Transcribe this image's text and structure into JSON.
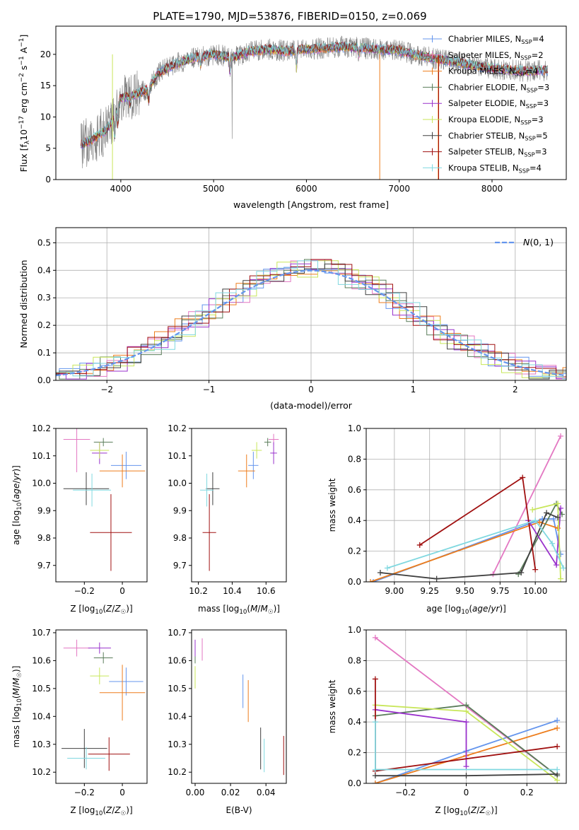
{
  "chart_data": [
    {
      "id": "spectrum",
      "type": "line",
      "title": "PLATE=1790, MJD=53876, FIBERID=0150, z=0.069",
      "xlabel": "wavelength [Angstrom, rest frame]",
      "ylabel": "Flux [f_λ10^-17 erg cm^-2 s^-1 A^-1]",
      "xlim": [
        3300,
        8800
      ],
      "ylim": [
        0,
        24.5
      ],
      "xticks": [
        4000,
        5000,
        6000,
        7000,
        8000
      ],
      "yticks": [
        0,
        5,
        10,
        15,
        20
      ],
      "grid": false,
      "legend_position": "upper-right",
      "legend": [
        {
          "label": "Chabrier MILES, N_SSP=4",
          "color": "#6495ed"
        },
        {
          "label": "Salpeter MILES, N_SSP=2",
          "color": "#e377c2"
        },
        {
          "label": "Kroupa MILES, N_SSP=4",
          "color": "#ed7d1c"
        },
        {
          "label": "Chabrier ELODIE, N_SSP=3",
          "color": "#5a7d5a"
        },
        {
          "label": "Salpeter ELODIE, N_SSP=3",
          "color": "#9932cc"
        },
        {
          "label": "Kroupa ELODIE, N_SSP=3",
          "color": "#c8e65a"
        },
        {
          "label": "Chabrier STELIB, N_SSP=5",
          "color": "#404040"
        },
        {
          "label": "Salpeter STELIB, N_SSP=3",
          "color": "#a01010"
        },
        {
          "label": "Kroupa STELIB, N_SSP=4",
          "color": "#80d8e0"
        }
      ],
      "continuum": [
        [
          3570,
          5.5
        ],
        [
          3700,
          6.5
        ],
        [
          3850,
          8
        ],
        [
          3930,
          10
        ],
        [
          4000,
          13
        ],
        [
          4150,
          13.5
        ],
        [
          4300,
          14.5
        ],
        [
          4400,
          17
        ],
        [
          4600,
          18.5
        ],
        [
          4800,
          19.5
        ],
        [
          5000,
          20
        ],
        [
          5200,
          19.5
        ],
        [
          5400,
          20.5
        ],
        [
          5600,
          20.8
        ],
        [
          5800,
          20.5
        ],
        [
          6000,
          20.8
        ],
        [
          6200,
          21
        ],
        [
          6400,
          21.2
        ],
        [
          6600,
          21
        ],
        [
          6800,
          20.8
        ],
        [
          7000,
          20.6
        ],
        [
          7200,
          19.8
        ],
        [
          7400,
          19.3
        ],
        [
          7600,
          18.8
        ],
        [
          7800,
          18.2
        ],
        [
          8000,
          17.8
        ],
        [
          8200,
          17.5
        ],
        [
          8400,
          17.3
        ],
        [
          8600,
          17.5
        ]
      ]
    },
    {
      "id": "residuals",
      "type": "histogram",
      "xlabel": "(data-model)/error",
      "ylabel": "Normed distribution",
      "xlim": [
        -2.5,
        2.5
      ],
      "ylim": [
        0,
        0.555
      ],
      "xticks": [
        -2,
        -1,
        0,
        1,
        2
      ],
      "yticks": [
        0.0,
        0.1,
        0.2,
        0.3,
        0.4,
        0.5
      ],
      "grid": true,
      "legend": [
        {
          "label": "N(0,1)",
          "color": "#6495ed",
          "style": "dashed"
        }
      ],
      "reference_curve": "gaussian(mean=0, sigma=1)"
    },
    {
      "id": "age-vs-Z",
      "type": "scatter",
      "xlabel": "Z [log10(Z/Z☉)]",
      "ylabel": "age [log10(age/yr)]",
      "xlim": [
        -0.35,
        0.13
      ],
      "ylim": [
        9.64,
        10.2
      ],
      "xticks": [
        -0.2,
        0.0
      ],
      "yticks": [
        9.7,
        9.8,
        9.9,
        10.0,
        10.1,
        10.2
      ],
      "grid": false,
      "points": [
        {
          "x": -0.1,
          "y": 10.15,
          "xerr": 0.05,
          "yerr": 0.015,
          "color": "#5a7d5a"
        },
        {
          "x": -0.24,
          "y": 10.16,
          "xerr": 0.07,
          "yerr": 0.12,
          "color": "#e377c2"
        },
        {
          "x": -0.12,
          "y": 10.11,
          "xerr": 0.04,
          "yerr": 0.04,
          "color": "#9932cc"
        },
        {
          "x": -0.12,
          "y": 10.12,
          "xerr": 0.05,
          "yerr": 0.03,
          "color": "#c8e65a"
        },
        {
          "x": 0.02,
          "y": 10.065,
          "xerr": 0.08,
          "yerr": 0.05,
          "color": "#6495ed"
        },
        {
          "x": 0.0,
          "y": 10.045,
          "xerr": 0.12,
          "yerr": 0.06,
          "color": "#ed7d1c"
        },
        {
          "x": -0.19,
          "y": 9.98,
          "xerr": 0.12,
          "yerr": 0.06,
          "color": "#404040"
        },
        {
          "x": -0.16,
          "y": 9.975,
          "xerr": 0.1,
          "yerr": 0.06,
          "color": "#80d8e0"
        },
        {
          "x": -0.06,
          "y": 9.82,
          "xerr": 0.11,
          "yerr": 0.14,
          "color": "#a01010"
        }
      ]
    },
    {
      "id": "age-vs-mass",
      "type": "scatter",
      "xlabel": "mass [log10(M/M☉)]",
      "ylabel": "",
      "xlim": [
        10.16,
        10.72
      ],
      "ylim": [
        9.64,
        10.2
      ],
      "xticks": [
        10.2,
        10.4,
        10.6
      ],
      "yticks": [
        9.7,
        9.8,
        9.9,
        10.0,
        10.1,
        10.2
      ],
      "grid": false,
      "points": [
        {
          "x": 10.61,
          "y": 10.15,
          "xerr": 0.02,
          "yerr": 0.015,
          "color": "#5a7d5a"
        },
        {
          "x": 10.645,
          "y": 10.16,
          "xerr": 0.03,
          "yerr": 0.02,
          "color": "#e377c2"
        },
        {
          "x": 10.645,
          "y": 10.11,
          "xerr": 0.02,
          "yerr": 0.04,
          "color": "#9932cc"
        },
        {
          "x": 10.545,
          "y": 10.12,
          "xerr": 0.03,
          "yerr": 0.03,
          "color": "#c8e65a"
        },
        {
          "x": 10.525,
          "y": 10.065,
          "xerr": 0.03,
          "yerr": 0.05,
          "color": "#6495ed"
        },
        {
          "x": 10.485,
          "y": 10.045,
          "xerr": 0.05,
          "yerr": 0.06,
          "color": "#ed7d1c"
        },
        {
          "x": 10.285,
          "y": 9.98,
          "xerr": 0.04,
          "yerr": 0.06,
          "color": "#404040"
        },
        {
          "x": 10.25,
          "y": 9.975,
          "xerr": 0.04,
          "yerr": 0.06,
          "color": "#80d8e0"
        },
        {
          "x": 10.265,
          "y": 9.82,
          "xerr": 0.04,
          "yerr": 0.14,
          "color": "#a01010"
        }
      ]
    },
    {
      "id": "massweight-vs-age",
      "type": "line",
      "xlabel": "age [log10(age/yr)]",
      "ylabel": "mass weight",
      "xlim": [
        8.8,
        10.22
      ],
      "ylim": [
        0,
        1.0
      ],
      "xticks": [
        9.0,
        9.25,
        9.5,
        9.75,
        10.0
      ],
      "xticklabels": [
        "9.00",
        "9.25",
        "9.50",
        "9.75",
        "10.00"
      ],
      "yticks": [
        0.0,
        0.2,
        0.4,
        0.6,
        0.8,
        1.0
      ],
      "grid": true,
      "series": [
        {
          "color": "#6495ed",
          "points": [
            [
              8.85,
              0.0
            ],
            [
              10.05,
              0.41
            ],
            [
              10.13,
              0.41
            ],
            [
              10.18,
              0.18
            ]
          ]
        },
        {
          "color": "#e377c2",
          "points": [
            [
              9.7,
              0.05
            ],
            [
              10.18,
              0.95
            ]
          ]
        },
        {
          "color": "#ed7d1c",
          "points": [
            [
              8.83,
              0.0
            ],
            [
              10.03,
              0.39
            ],
            [
              10.16,
              0.35
            ]
          ]
        },
        {
          "color": "#5a7d5a",
          "points": [
            [
              9.88,
              0.05
            ],
            [
              10.15,
              0.51
            ],
            [
              10.19,
              0.44
            ]
          ]
        },
        {
          "color": "#9932cc",
          "points": [
            [
              9.95,
              0.4
            ],
            [
              10.15,
              0.11
            ],
            [
              10.18,
              0.48
            ]
          ]
        },
        {
          "color": "#c8e65a",
          "points": [
            [
              9.98,
              0.47
            ],
            [
              10.16,
              0.51
            ],
            [
              10.18,
              0.02
            ]
          ]
        },
        {
          "color": "#404040",
          "points": [
            [
              8.9,
              0.06
            ],
            [
              9.3,
              0.02
            ],
            [
              9.9,
              0.06
            ],
            [
              10.08,
              0.45
            ],
            [
              10.16,
              0.42
            ]
          ]
        },
        {
          "color": "#a01010",
          "points": [
            [
              9.18,
              0.24
            ],
            [
              9.91,
              0.68
            ],
            [
              10.0,
              0.08
            ]
          ]
        },
        {
          "color": "#80d8e0",
          "points": [
            [
              8.95,
              0.09
            ],
            [
              10.0,
              0.4
            ],
            [
              10.12,
              0.25
            ],
            [
              10.2,
              0.09
            ]
          ]
        }
      ]
    },
    {
      "id": "mass-vs-Z",
      "type": "scatter",
      "xlabel": "Z [log10(Z/Z☉)]",
      "ylabel": "mass [log10(M/M☉)]",
      "xlim": [
        -0.35,
        0.13
      ],
      "ylim": [
        10.16,
        10.71
      ],
      "xticks": [
        -0.2,
        0.0
      ],
      "yticks": [
        10.2,
        10.3,
        10.4,
        10.5,
        10.6,
        10.7
      ],
      "grid": false,
      "points": [
        {
          "x": -0.1,
          "y": 10.61,
          "xerr": 0.05,
          "yerr": 0.02,
          "color": "#5a7d5a"
        },
        {
          "x": -0.24,
          "y": 10.645,
          "xerr": 0.07,
          "yerr": 0.03,
          "color": "#e377c2"
        },
        {
          "x": -0.12,
          "y": 10.645,
          "xerr": 0.06,
          "yerr": 0.02,
          "color": "#9932cc"
        },
        {
          "x": -0.12,
          "y": 10.545,
          "xerr": 0.05,
          "yerr": 0.03,
          "color": "#c8e65a"
        },
        {
          "x": 0.02,
          "y": 10.525,
          "xerr": 0.09,
          "yerr": 0.05,
          "color": "#6495ed"
        },
        {
          "x": 0.0,
          "y": 10.485,
          "xerr": 0.12,
          "yerr": 0.1,
          "color": "#ed7d1c"
        },
        {
          "x": -0.2,
          "y": 10.285,
          "xerr": 0.12,
          "yerr": 0.07,
          "color": "#404040"
        },
        {
          "x": -0.19,
          "y": 10.25,
          "xerr": 0.1,
          "yerr": 0.04,
          "color": "#80d8e0"
        },
        {
          "x": -0.07,
          "y": 10.265,
          "xerr": 0.11,
          "yerr": 0.06,
          "color": "#a01010"
        }
      ]
    },
    {
      "id": "mass-vs-ebv",
      "type": "scatter",
      "xlabel": "E(B-V)",
      "ylabel": "",
      "xlim": [
        -0.002,
        0.0515
      ],
      "ylim": [
        10.16,
        10.71
      ],
      "xticks": [
        0.0,
        0.02,
        0.04
      ],
      "xticklabels": [
        "0.00",
        "0.02",
        "0.04"
      ],
      "yticks": [
        10.2,
        10.3,
        10.4,
        10.5,
        10.6,
        10.7
      ],
      "grid": false,
      "points": [
        {
          "x": 0.0,
          "y": 10.61,
          "yerr": 0.02,
          "color": "#5a7d5a"
        },
        {
          "x": 0.004,
          "y": 10.64,
          "yerr": 0.04,
          "color": "#e377c2"
        },
        {
          "x": 0.0,
          "y": 10.645,
          "yerr": 0.03,
          "color": "#9932cc"
        },
        {
          "x": 0.0,
          "y": 10.54,
          "yerr": 0.04,
          "color": "#c8e65a"
        },
        {
          "x": 0.027,
          "y": 10.49,
          "yerr": 0.06,
          "color": "#6495ed"
        },
        {
          "x": 0.03,
          "y": 10.455,
          "yerr": 0.075,
          "color": "#ed7d1c"
        },
        {
          "x": 0.037,
          "y": 10.285,
          "yerr": 0.075,
          "color": "#404040"
        },
        {
          "x": 0.039,
          "y": 10.26,
          "yerr": 0.06,
          "color": "#80d8e0"
        },
        {
          "x": 0.05,
          "y": 10.26,
          "yerr": 0.07,
          "color": "#a01010"
        }
      ]
    },
    {
      "id": "massweight-vs-Z",
      "type": "line",
      "xlabel": "Z [log10(Z/Z☉)]",
      "ylabel": "mass weight",
      "xlim": [
        -0.33,
        0.33
      ],
      "ylim": [
        0,
        1.0
      ],
      "xticks": [
        -0.2,
        0.0,
        0.2
      ],
      "yticks": [
        0.0,
        0.2,
        0.4,
        0.6,
        0.8,
        1.0
      ],
      "grid": true,
      "series": [
        {
          "color": "#6495ed",
          "points": [
            [
              -0.3,
              0.0
            ],
            [
              0.0,
              0.21
            ],
            [
              0.3,
              0.41
            ]
          ]
        },
        {
          "color": "#e377c2",
          "points": [
            [
              -0.3,
              0.95
            ],
            [
              0.3,
              0.05
            ]
          ]
        },
        {
          "color": "#ed7d1c",
          "points": [
            [
              -0.3,
              0.0
            ],
            [
              0.0,
              0.18
            ],
            [
              0.3,
              0.36
            ]
          ]
        },
        {
          "color": "#5a7d5a",
          "points": [
            [
              -0.3,
              0.44
            ],
            [
              0.0,
              0.51
            ],
            [
              0.3,
              0.05
            ]
          ]
        },
        {
          "color": "#9932cc",
          "points": [
            [
              -0.3,
              0.48
            ],
            [
              0.0,
              0.4
            ],
            [
              0.0,
              0.11
            ]
          ]
        },
        {
          "color": "#c8e65a",
          "points": [
            [
              -0.3,
              0.51
            ],
            [
              0.0,
              0.47
            ],
            [
              0.3,
              0.02
            ]
          ]
        },
        {
          "color": "#404040",
          "points": [
            [
              -0.3,
              0.05
            ],
            [
              0.0,
              0.05
            ],
            [
              0.3,
              0.06
            ]
          ]
        },
        {
          "color": "#a01010",
          "points": [
            [
              -0.3,
              0.68
            ],
            [
              -0.3,
              0.08
            ],
            [
              0.3,
              0.24
            ]
          ]
        },
        {
          "color": "#80d8e0",
          "points": [
            [
              -0.3,
              0.4
            ],
            [
              -0.3,
              0.09
            ],
            [
              0.3,
              0.09
            ]
          ]
        }
      ]
    }
  ]
}
